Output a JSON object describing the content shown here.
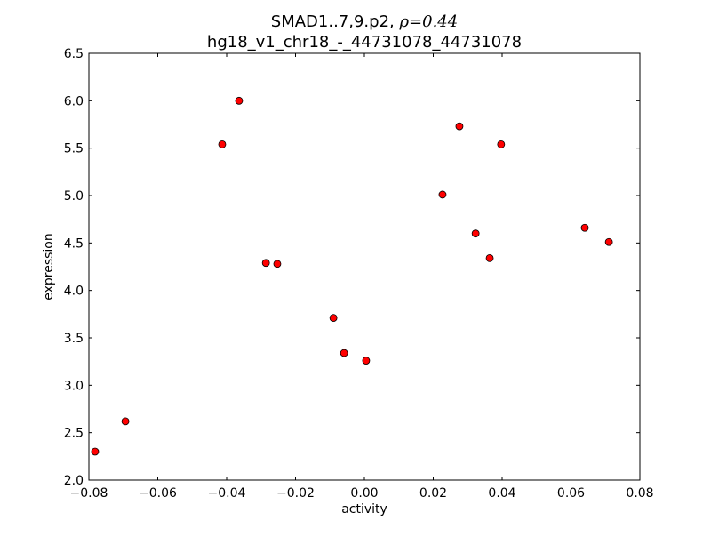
{
  "chart_data": {
    "type": "scatter",
    "title_line1_prefix": "SMAD1..7,9.p2, ",
    "title_line1_rho": "ρ=0.44",
    "title_line2": "hg18_v1_chr18_-_44731078_44731078",
    "xlabel": "activity",
    "ylabel": "expression",
    "xlim": [
      -0.08,
      0.08
    ],
    "ylim": [
      2.0,
      6.5
    ],
    "xticks": [
      "−0.08",
      "−0.06",
      "−0.04",
      "−0.02",
      "0.00",
      "0.02",
      "0.04",
      "0.06",
      "0.08"
    ],
    "xtick_values": [
      -0.08,
      -0.06,
      -0.04,
      -0.02,
      0.0,
      0.02,
      0.04,
      0.06,
      0.08
    ],
    "yticks": [
      "2.0",
      "2.5",
      "3.0",
      "3.5",
      "4.0",
      "4.5",
      "5.0",
      "5.5",
      "6.0",
      "6.5"
    ],
    "ytick_values": [
      2.0,
      2.5,
      3.0,
      3.5,
      4.0,
      4.5,
      5.0,
      5.5,
      6.0,
      6.5
    ],
    "grid": false,
    "marker_color": "#ff0000",
    "marker_edge": "#000000",
    "points": [
      {
        "x": -0.0782,
        "y": 2.3
      },
      {
        "x": -0.0694,
        "y": 2.62
      },
      {
        "x": -0.0413,
        "y": 5.54
      },
      {
        "x": -0.0364,
        "y": 6.0
      },
      {
        "x": -0.0286,
        "y": 4.29
      },
      {
        "x": -0.0253,
        "y": 4.28
      },
      {
        "x": -0.009,
        "y": 3.71
      },
      {
        "x": -0.0059,
        "y": 3.34
      },
      {
        "x": 0.0005,
        "y": 3.26
      },
      {
        "x": 0.0227,
        "y": 5.01
      },
      {
        "x": 0.0276,
        "y": 5.73
      },
      {
        "x": 0.0323,
        "y": 4.6
      },
      {
        "x": 0.0364,
        "y": 4.34
      },
      {
        "x": 0.0397,
        "y": 5.54
      },
      {
        "x": 0.064,
        "y": 4.66
      },
      {
        "x": 0.071,
        "y": 4.51
      }
    ]
  }
}
